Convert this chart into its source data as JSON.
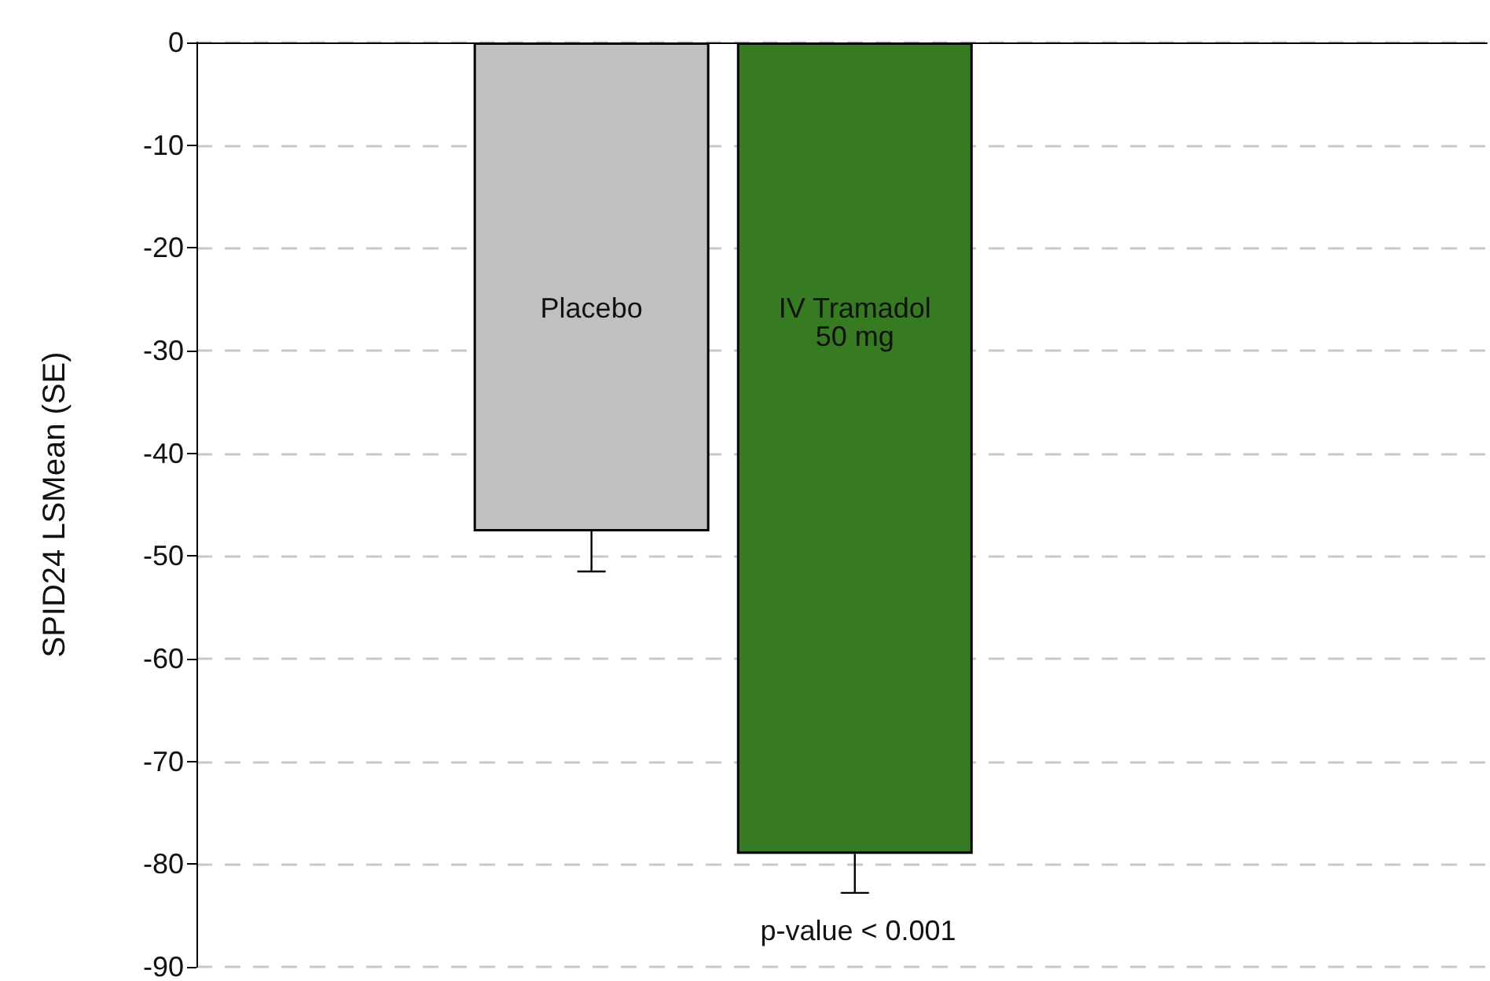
{
  "chart_data": {
    "type": "bar",
    "ylabel": "SPID24 LSMean (SE)",
    "categories": [
      "Placebo",
      "IV Tramadol\n50 mg"
    ],
    "values": [
      -47.6,
      -79
    ],
    "colors": [
      "#c0c0c0",
      "#367a22"
    ],
    "errors": [
      3.9,
      3.8
    ],
    "ylim": [
      -90,
      0
    ],
    "yticks": [
      0,
      -10,
      -20,
      -30,
      -40,
      -50,
      -60,
      -70,
      -80,
      -90
    ],
    "grid": "y",
    "annotations": [
      "p-value < 0.001"
    ]
  }
}
